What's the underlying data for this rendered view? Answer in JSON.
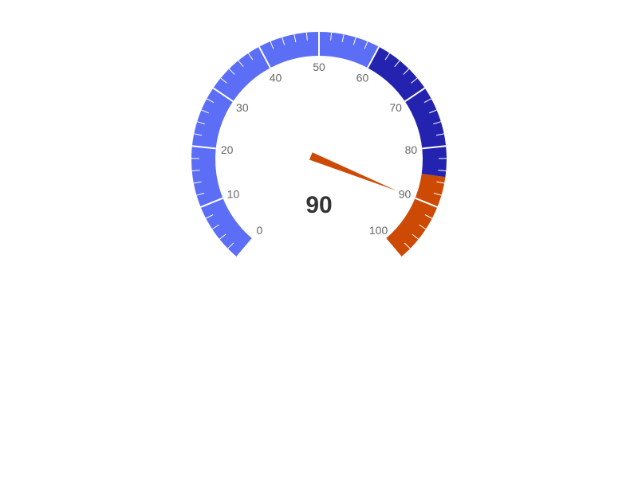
{
  "chart_data": {
    "type": "gauge",
    "min": 0,
    "max": 100,
    "value": 90,
    "value_label": "90",
    "major_tick_labels": [
      "0",
      "10",
      "20",
      "30",
      "40",
      "50",
      "60",
      "70",
      "80",
      "90",
      "100"
    ],
    "bands": [
      {
        "from": 0,
        "to": 60,
        "color": "#5b6ef5"
      },
      {
        "from": 60,
        "to": 85,
        "color": "#2323b0"
      },
      {
        "from": 85,
        "to": 100,
        "color": "#cc4a04"
      }
    ],
    "needle_color": "#cc4a04",
    "tick_label_color": "#666666",
    "value_text_color": "#333333"
  }
}
